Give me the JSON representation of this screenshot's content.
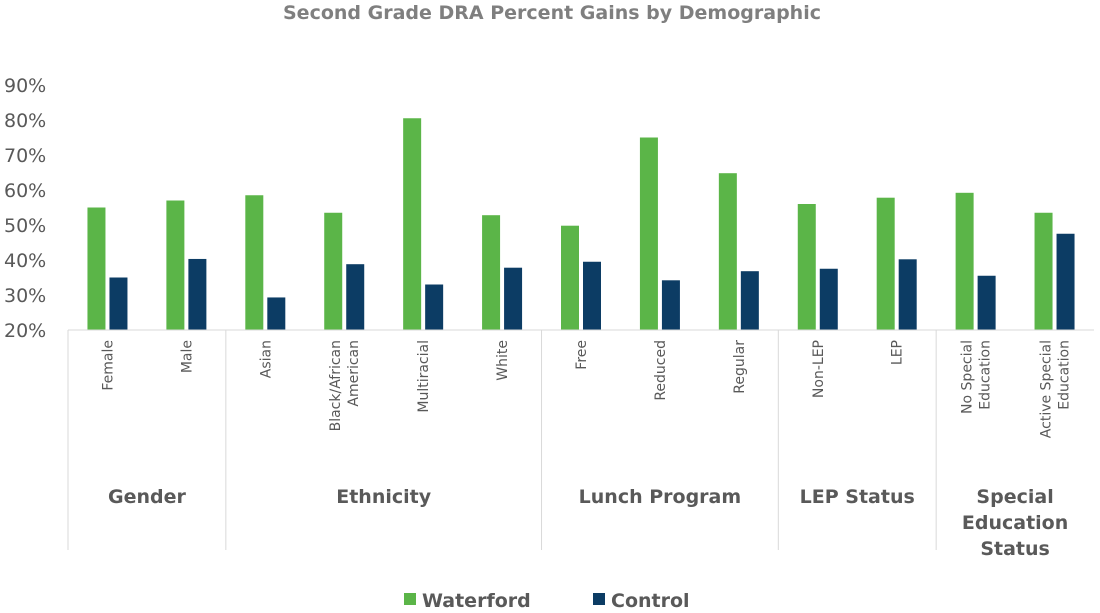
{
  "chart_data": {
    "type": "bar",
    "title": "Second Grade DRA Percent Gains by Demographic",
    "xlabel": "",
    "ylabel": "",
    "ylim": [
      20,
      90
    ],
    "yticks": [
      "20%",
      "30%",
      "40%",
      "50%",
      "60%",
      "70%",
      "80%",
      "90%"
    ],
    "grid": false,
    "legend_position": "bottom",
    "groups": [
      {
        "name": "Gender",
        "categories": [
          [
            "Female"
          ],
          [
            "Male"
          ]
        ]
      },
      {
        "name": "Ethnicity",
        "categories": [
          [
            "Asian"
          ],
          [
            "Black/African",
            "American"
          ],
          [
            "Multiracial"
          ],
          [
            "White"
          ]
        ]
      },
      {
        "name": "Lunch Program",
        "categories": [
          [
            "Free"
          ],
          [
            "Reduced"
          ],
          [
            "Regular"
          ]
        ]
      },
      {
        "name": "LEP Status",
        "categories": [
          [
            "Non-LEP"
          ],
          [
            "LEP"
          ]
        ]
      },
      {
        "name": "Special Education Status",
        "name_lines": [
          "Special",
          "Education",
          "Status"
        ],
        "categories": [
          [
            "No Special",
            "Education"
          ],
          [
            "Active Special",
            "Education"
          ]
        ]
      }
    ],
    "series": [
      {
        "name": "Waterford",
        "color": "#5bb548",
        "values": [
          55,
          57,
          58.5,
          53.5,
          80.5,
          52.8,
          49.8,
          75,
          64.8,
          56,
          57.8,
          59.2,
          53.5
        ]
      },
      {
        "name": "Control",
        "color": "#0c3c64",
        "values": [
          35,
          40.3,
          29.3,
          38.8,
          33,
          37.8,
          39.5,
          34.2,
          36.8,
          37.5,
          40.2,
          35.5,
          47.5
        ]
      }
    ]
  }
}
